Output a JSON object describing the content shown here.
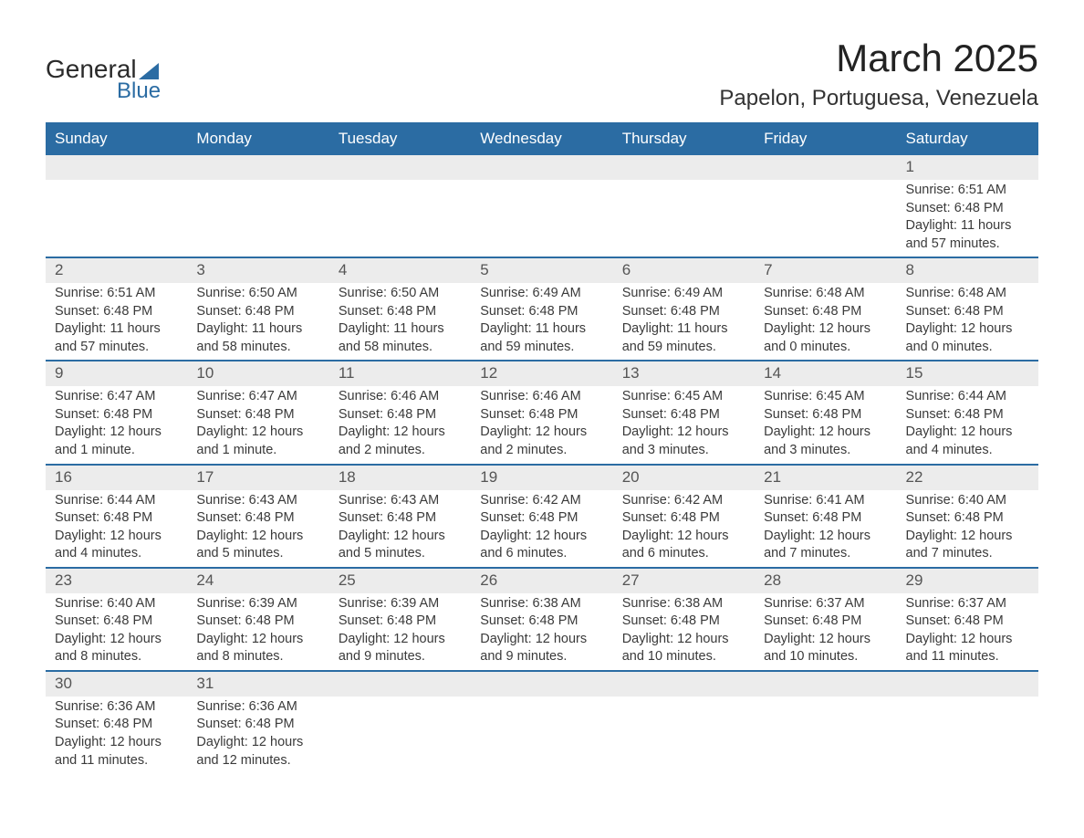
{
  "logo": {
    "line1": "General",
    "line2": "Blue"
  },
  "header": {
    "month_title": "March 2025",
    "location": "Papelon, Portuguesa, Venezuela"
  },
  "weekdays": [
    "Sunday",
    "Monday",
    "Tuesday",
    "Wednesday",
    "Thursday",
    "Friday",
    "Saturday"
  ],
  "labels": {
    "sunrise": "Sunrise:",
    "sunset": "Sunset:",
    "daylight": "Daylight:"
  },
  "colors": {
    "header_bg": "#2b6ca3",
    "header_text": "#ffffff",
    "row_divider": "#2b6ca3",
    "daynum_bg": "#ececec",
    "text": "#333333",
    "background": "#ffffff"
  },
  "weeks": [
    [
      {
        "empty": true
      },
      {
        "empty": true
      },
      {
        "empty": true
      },
      {
        "empty": true
      },
      {
        "empty": true
      },
      {
        "empty": true
      },
      {
        "day": "1",
        "sunrise": "6:51 AM",
        "sunset": "6:48 PM",
        "daylight": "11 hours and 57 minutes."
      }
    ],
    [
      {
        "day": "2",
        "sunrise": "6:51 AM",
        "sunset": "6:48 PM",
        "daylight": "11 hours and 57 minutes."
      },
      {
        "day": "3",
        "sunrise": "6:50 AM",
        "sunset": "6:48 PM",
        "daylight": "11 hours and 58 minutes."
      },
      {
        "day": "4",
        "sunrise": "6:50 AM",
        "sunset": "6:48 PM",
        "daylight": "11 hours and 58 minutes."
      },
      {
        "day": "5",
        "sunrise": "6:49 AM",
        "sunset": "6:48 PM",
        "daylight": "11 hours and 59 minutes."
      },
      {
        "day": "6",
        "sunrise": "6:49 AM",
        "sunset": "6:48 PM",
        "daylight": "11 hours and 59 minutes."
      },
      {
        "day": "7",
        "sunrise": "6:48 AM",
        "sunset": "6:48 PM",
        "daylight": "12 hours and 0 minutes."
      },
      {
        "day": "8",
        "sunrise": "6:48 AM",
        "sunset": "6:48 PM",
        "daylight": "12 hours and 0 minutes."
      }
    ],
    [
      {
        "day": "9",
        "sunrise": "6:47 AM",
        "sunset": "6:48 PM",
        "daylight": "12 hours and 1 minute."
      },
      {
        "day": "10",
        "sunrise": "6:47 AM",
        "sunset": "6:48 PM",
        "daylight": "12 hours and 1 minute."
      },
      {
        "day": "11",
        "sunrise": "6:46 AM",
        "sunset": "6:48 PM",
        "daylight": "12 hours and 2 minutes."
      },
      {
        "day": "12",
        "sunrise": "6:46 AM",
        "sunset": "6:48 PM",
        "daylight": "12 hours and 2 minutes."
      },
      {
        "day": "13",
        "sunrise": "6:45 AM",
        "sunset": "6:48 PM",
        "daylight": "12 hours and 3 minutes."
      },
      {
        "day": "14",
        "sunrise": "6:45 AM",
        "sunset": "6:48 PM",
        "daylight": "12 hours and 3 minutes."
      },
      {
        "day": "15",
        "sunrise": "6:44 AM",
        "sunset": "6:48 PM",
        "daylight": "12 hours and 4 minutes."
      }
    ],
    [
      {
        "day": "16",
        "sunrise": "6:44 AM",
        "sunset": "6:48 PM",
        "daylight": "12 hours and 4 minutes."
      },
      {
        "day": "17",
        "sunrise": "6:43 AM",
        "sunset": "6:48 PM",
        "daylight": "12 hours and 5 minutes."
      },
      {
        "day": "18",
        "sunrise": "6:43 AM",
        "sunset": "6:48 PM",
        "daylight": "12 hours and 5 minutes."
      },
      {
        "day": "19",
        "sunrise": "6:42 AM",
        "sunset": "6:48 PM",
        "daylight": "12 hours and 6 minutes."
      },
      {
        "day": "20",
        "sunrise": "6:42 AM",
        "sunset": "6:48 PM",
        "daylight": "12 hours and 6 minutes."
      },
      {
        "day": "21",
        "sunrise": "6:41 AM",
        "sunset": "6:48 PM",
        "daylight": "12 hours and 7 minutes."
      },
      {
        "day": "22",
        "sunrise": "6:40 AM",
        "sunset": "6:48 PM",
        "daylight": "12 hours and 7 minutes."
      }
    ],
    [
      {
        "day": "23",
        "sunrise": "6:40 AM",
        "sunset": "6:48 PM",
        "daylight": "12 hours and 8 minutes."
      },
      {
        "day": "24",
        "sunrise": "6:39 AM",
        "sunset": "6:48 PM",
        "daylight": "12 hours and 8 minutes."
      },
      {
        "day": "25",
        "sunrise": "6:39 AM",
        "sunset": "6:48 PM",
        "daylight": "12 hours and 9 minutes."
      },
      {
        "day": "26",
        "sunrise": "6:38 AM",
        "sunset": "6:48 PM",
        "daylight": "12 hours and 9 minutes."
      },
      {
        "day": "27",
        "sunrise": "6:38 AM",
        "sunset": "6:48 PM",
        "daylight": "12 hours and 10 minutes."
      },
      {
        "day": "28",
        "sunrise": "6:37 AM",
        "sunset": "6:48 PM",
        "daylight": "12 hours and 10 minutes."
      },
      {
        "day": "29",
        "sunrise": "6:37 AM",
        "sunset": "6:48 PM",
        "daylight": "12 hours and 11 minutes."
      }
    ],
    [
      {
        "day": "30",
        "sunrise": "6:36 AM",
        "sunset": "6:48 PM",
        "daylight": "12 hours and 11 minutes."
      },
      {
        "day": "31",
        "sunrise": "6:36 AM",
        "sunset": "6:48 PM",
        "daylight": "12 hours and 12 minutes."
      },
      {
        "empty": true
      },
      {
        "empty": true
      },
      {
        "empty": true
      },
      {
        "empty": true
      },
      {
        "empty": true
      }
    ]
  ]
}
